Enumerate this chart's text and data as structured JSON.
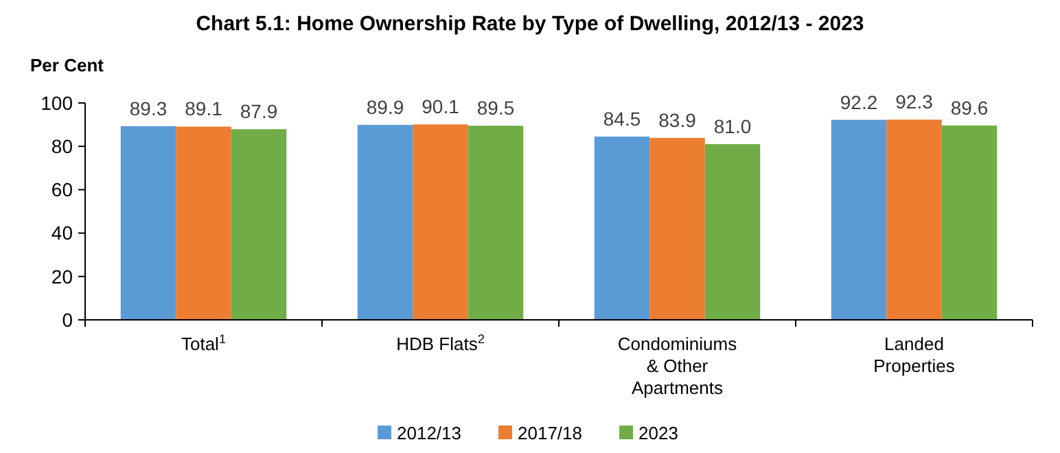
{
  "chart_data": {
    "type": "bar",
    "title": "Chart 5.1: Home Ownership Rate by Type of Dwelling, 2012/13 - 2023",
    "ylabel": "Per Cent",
    "categories": [
      "Total$^{1}$",
      "HDB Flats$^{2}$",
      "Condominiums & Other Apartments",
      "Landed Properties"
    ],
    "series": [
      {
        "name": "2012/13",
        "color": "#5b9bd5",
        "values": [
          89.3,
          89.9,
          84.5,
          92.2
        ],
        "value_labels": [
          "89.3",
          "89.9",
          "84.5",
          "92.2"
        ]
      },
      {
        "name": "2017/18",
        "color": "#ed7d31",
        "values": [
          89.1,
          90.1,
          83.9,
          92.3
        ],
        "value_labels": [
          "89.1",
          "90.1",
          "83.9",
          "92.3"
        ]
      },
      {
        "name": "2023",
        "color": "#70ad47",
        "values": [
          87.9,
          89.5,
          81.0,
          89.6
        ],
        "value_labels": [
          "87.9",
          "89.5",
          "81.0",
          "89.6"
        ]
      }
    ],
    "ylim": [
      0,
      100
    ],
    "yticks": [
      0,
      20,
      40,
      60,
      80,
      100
    ],
    "grid": false,
    "legend": "bottom"
  }
}
